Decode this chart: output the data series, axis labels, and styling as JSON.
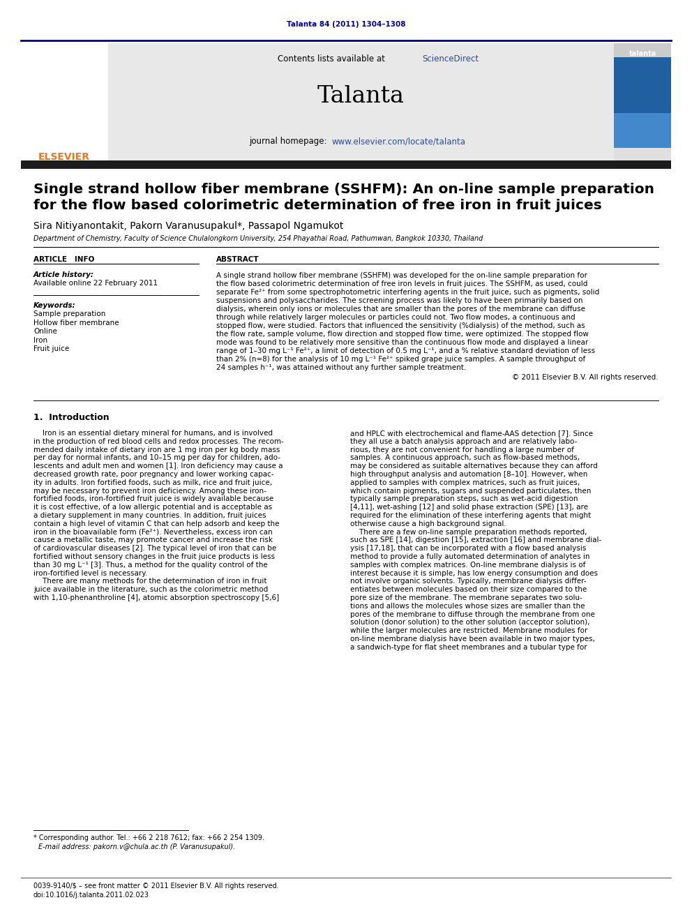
{
  "page_citation": "Talanta 84 (2011) 1304–1308",
  "journal_name": "Talanta",
  "contents_line1": "Contents lists available at ",
  "contents_sciencedirect": "ScienceDirect",
  "journal_homepage_pre": "journal homepage: ",
  "journal_homepage_url": "www.elsevier.com/locate/talanta",
  "article_title_line1": "Single strand hollow fiber membrane (SSHFM): An on-line sample preparation",
  "article_title_line2": "for the flow based colorimetric determination of free iron in fruit juices",
  "authors": "Sira Nitiyanontakit, Pakorn Varanusupakul*, Passapol Ngamukot",
  "affiliation": "Department of Chemistry, Faculty of Science Chulalongkorn University, 254 Phayathai Road, Pathumwan, Bangkok 10330, Thailand",
  "article_info_label": "ARTICLE   INFO",
  "abstract_label": "ABSTRACT",
  "article_history_label": "Article history:",
  "article_history_date": "Available online 22 February 2011",
  "keywords_label": "Keywords:",
  "keywords": [
    "Sample preparation",
    "Hollow fiber membrane",
    "Online",
    "Iron",
    "Fruit juice"
  ],
  "copyright_line": "© 2011 Elsevier B.V. All rights reserved.",
  "section1_title": "1.  Introduction",
  "footnote_star": "* Corresponding author. Tel.: +66 2 218 7612; fax: +66 2 254 1309.",
  "footnote_email": "E-mail address: pakorn.v@chula.ac.th (P. Varanusupakul).",
  "footer_issn": "0039-9140/$ – see front matter © 2011 Elsevier B.V. All rights reserved.",
  "footer_doi": "doi:10.1016/j.talanta.2011.02.023",
  "bg_color": "#ffffff",
  "dark_navy": "#00008B",
  "elsevier_orange": "#E87722",
  "link_color": "#2B4BA0",
  "header_gray": "#E8E8E8",
  "dark_band": "#1C1C1C",
  "abstract_lines": [
    "A single strand hollow fiber membrane (SSHFM) was developed for the on-line sample preparation for",
    "the flow based colorimetric determination of free iron levels in fruit juices. The SSHFM, as used, could",
    "separate Fe²⁺ from some spectrophotometric interfering agents in the fruit juice, such as pigments, solid",
    "suspensions and polysaccharides. The screening process was likely to have been primarily based on",
    "dialysis, wherein only ions or molecules that are smaller than the pores of the membrane can diffuse",
    "through while relatively larger molecules or particles could not. Two flow modes, a continuous and",
    "stopped flow, were studied. Factors that influenced the sensitivity (%dialysis) of the method, such as",
    "the flow rate, sample volume, flow direction and stopped flow time, were optimized. The stopped flow",
    "mode was found to be relatively more sensitive than the continuous flow mode and displayed a linear",
    "range of 1–30 mg L⁻¹ Fe²⁺, a limit of detection of 0.5 mg L⁻¹, and a % relative standard deviation of less",
    "than 2% (n=8) for the analysis of 10 mg L⁻¹ Fe²⁺ spiked grape juice samples. A sample throughput of",
    "24 samples h⁻¹, was attained without any further sample treatment."
  ],
  "col1_lines": [
    "    Iron is an essential dietary mineral for humans, and is involved",
    "in the production of red blood cells and redox processes. The recom-",
    "mended daily intake of dietary iron are 1 mg iron per kg body mass",
    "per day for normal infants, and 10–15 mg per day for children, ado-",
    "lescents and adult men and women [1]. Iron deficiency may cause a",
    "decreased growth rate, poor pregnancy and lower working capac-",
    "ity in adults. Iron fortified foods, such as milk, rice and fruit juice,",
    "may be necessary to prevent iron deficiency. Among these iron-",
    "fortified foods, iron-fortified fruit juice is widely available because",
    "it is cost effective, of a low allergic potential and is acceptable as",
    "a dietary supplement in many countries. In addition, fruit juices",
    "contain a high level of vitamin C that can help adsorb and keep the",
    "iron in the bioavailable form (Fe²⁺). Nevertheless, excess iron can",
    "cause a metallic taste, may promote cancer and increase the risk",
    "of cardiovascular diseases [2]. The typical level of iron that can be",
    "fortified without sensory changes in the fruit juice products is less",
    "than 30 mg L⁻¹ [3]. Thus, a method for the quality control of the",
    "iron-fortified level is necessary.",
    "    There are many methods for the determination of iron in fruit",
    "juice available in the literature, such as the colorimetric method",
    "with 1,10-phenanthroline [4], atomic absorption spectroscopy [5,6]"
  ],
  "col2_lines": [
    "and HPLC with electrochemical and flame-AAS detection [7]. Since",
    "they all use a batch analysis approach and are relatively labo-",
    "rious, they are not convenient for handling a large number of",
    "samples. A continuous approach, such as flow-based methods,",
    "may be considered as suitable alternatives because they can afford",
    "high throughput analysis and automation [8–10]. However, when",
    "applied to samples with complex matrices, such as fruit juices,",
    "which contain pigments, sugars and suspended particulates, then",
    "typically sample preparation steps, such as wet-acid digestion",
    "[4,11], wet-ashing [12] and solid phase extraction (SPE) [13], are",
    "required for the elimination of these interfering agents that might",
    "otherwise cause a high background signal.",
    "    There are a few on-line sample preparation methods reported,",
    "such as SPE [14], digestion [15], extraction [16] and membrane dial-",
    "ysis [17,18], that can be incorporated with a flow based analysis",
    "method to provide a fully automated determination of analytes in",
    "samples with complex matrices. On-line membrane dialysis is of",
    "interest because it is simple, has low energy consumption and does",
    "not involve organic solvents. Typically, membrane dialysis differ-",
    "entiates between molecules based on their size compared to the",
    "pore size of the membrane. The membrane separates two solu-",
    "tions and allows the molecules whose sizes are smaller than the",
    "pores of the membrane to diffuse through the membrane from one",
    "solution (donor solution) to the other solution (acceptor solution),",
    "while the larger molecules are restricted. Membrane modules for",
    "on-line membrane dialysis have been available in two major types,",
    "a sandwich-type for flat sheet membranes and a tubular type for"
  ]
}
